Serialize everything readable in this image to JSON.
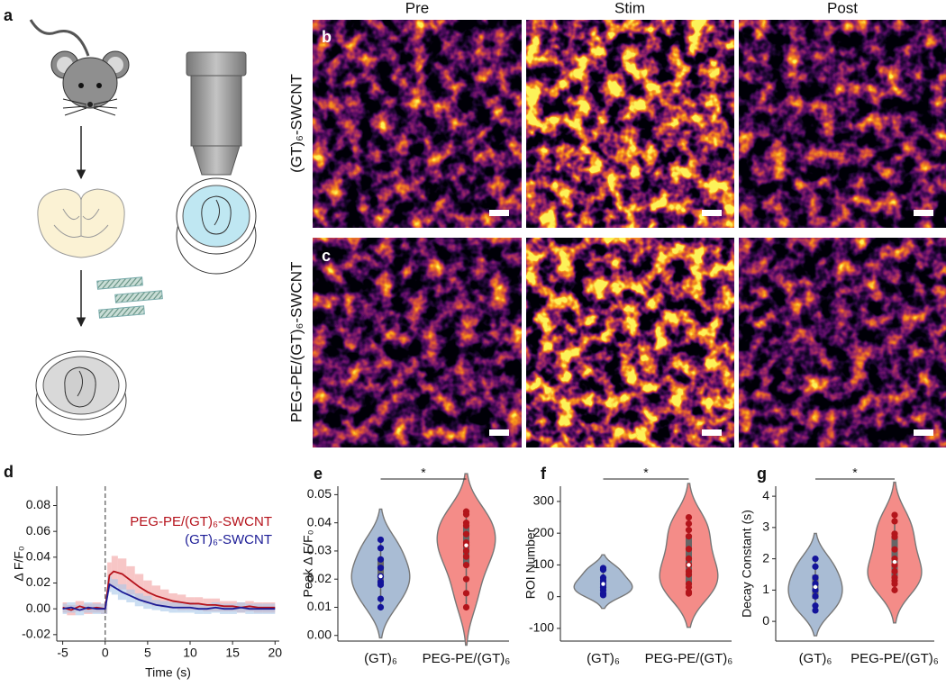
{
  "figure": {
    "panel_labels": [
      "a",
      "b",
      "c",
      "d",
      "e",
      "f",
      "g"
    ],
    "column_headers": [
      "Pre",
      "Stim",
      "Post"
    ],
    "row_labels": [
      "(GT)₆-SWCNT",
      "PEG-PE/(GT)₆-SWCNT"
    ]
  },
  "chart_data": [
    {
      "type": "line",
      "xlabel": "Time (s)",
      "ylabel": "Δ F/F₀",
      "x": [
        -5,
        -4,
        -3,
        -2,
        -1,
        0,
        0.5,
        1,
        2,
        3,
        4,
        5,
        6,
        7,
        8,
        9,
        10,
        11,
        12,
        13,
        14,
        15,
        16,
        17,
        18,
        19,
        20
      ],
      "series": [
        {
          "name": "PEG-PE/(GT)₆-SWCNT",
          "color": "#b5121b",
          "band_color": "#f2a0a0",
          "values": [
            0.001,
            -0.001,
            0.002,
            0,
            0.001,
            0,
            0.026,
            0.029,
            0.027,
            0.022,
            0.017,
            0.013,
            0.01,
            0.008,
            0.006,
            0.005,
            0.004,
            0.004,
            0.003,
            0.003,
            0.002,
            0.002,
            0.001,
            0.002,
            0.001,
            0.001,
            0.001
          ],
          "errors": [
            0.004,
            0.004,
            0.004,
            0.004,
            0.004,
            0.004,
            0.01,
            0.012,
            0.012,
            0.011,
            0.01,
            0.009,
            0.008,
            0.007,
            0.006,
            0.006,
            0.005,
            0.005,
            0.005,
            0.005,
            0.004,
            0.004,
            0.004,
            0.004,
            0.004,
            0.004,
            0.004
          ]
        },
        {
          "name": "(GT)₆-SWCNT",
          "color": "#1c1c96",
          "band_color": "#a9c8ea",
          "values": [
            0,
            0.001,
            -0.001,
            0.001,
            0,
            0,
            0.019,
            0.017,
            0.013,
            0.01,
            0.007,
            0.005,
            0.003,
            0.002,
            0.001,
            0.001,
            0.001,
            0,
            0,
            0.001,
            0,
            0,
            0.001,
            0,
            0,
            0,
            0
          ],
          "errors": [
            0.004,
            0.004,
            0.004,
            0.004,
            0.004,
            0.004,
            0.006,
            0.006,
            0.006,
            0.005,
            0.005,
            0.005,
            0.004,
            0.004,
            0.004,
            0.004,
            0.004,
            0.004,
            0.004,
            0.004,
            0.004,
            0.004,
            0.004,
            0.004,
            0.004,
            0.004,
            0.004
          ]
        }
      ],
      "vline": 0,
      "legend": "upper right",
      "xlim": [
        -5.7,
        20.5
      ],
      "xticks": [
        -5,
        0,
        5,
        10,
        15,
        20
      ],
      "ylim": [
        -0.025,
        0.095
      ],
      "yticks": [
        -0.02,
        {
          "value": 0,
          "label": "0.00"
        },
        0.02,
        0.04,
        0.06,
        0.08
      ]
    },
    {
      "type": "violin",
      "ylabel": "Peak Δ F/F₀",
      "categories": [
        "(GT)₆",
        "PEG-PE/(GT)₆"
      ],
      "values": [
        [
          0.034,
          0.031,
          0.027,
          0.024,
          0.021,
          0.019,
          0.018,
          0.013,
          0.01
        ],
        [
          0.044,
          0.043,
          0.04,
          0.039,
          0.036,
          0.033,
          0.032,
          0.03,
          0.028,
          0.025,
          0.02,
          0.015,
          0.01
        ]
      ],
      "colors": [
        "#a9bcd4",
        "#f48c88"
      ],
      "point_colors": [
        "#13139a",
        "#b3151b"
      ],
      "significance": "*",
      "ylim": [
        -0.002,
        0.053
      ],
      "yticks": [
        {
          "value": 0,
          "label": "0.00"
        },
        0.01,
        0.02,
        0.03,
        0.04,
        0.05
      ]
    },
    {
      "type": "violin",
      "ylabel": "ROI Number",
      "categories": [
        "(GT)₆",
        "PEG-PE/(GT)₆"
      ],
      "values": [
        [
          90,
          85,
          60,
          50,
          40,
          30,
          20,
          10,
          5
        ],
        [
          250,
          230,
          210,
          190,
          150,
          120,
          100,
          80,
          70,
          40,
          30,
          10,
          15
        ]
      ],
      "colors": [
        "#a9bcd4",
        "#f48c88"
      ],
      "point_colors": [
        "#13139a",
        "#b3151b"
      ],
      "significance": "*",
      "ylim": [
        -140,
        348
      ],
      "yticks": [
        -100,
        0,
        100,
        200,
        300
      ]
    },
    {
      "type": "violin",
      "ylabel": "Decay Constant (s)",
      "categories": [
        "(GT)₆",
        "PEG-PE/(GT)₆"
      ],
      "values": [
        [
          2.0,
          1.75,
          1.4,
          1.2,
          1.0,
          0.8,
          0.5,
          0.35
        ],
        [
          3.4,
          3.2,
          2.8,
          2.7,
          2.3,
          2.0,
          1.8,
          1.6,
          1.4,
          1.3,
          1.2,
          1.0
        ]
      ],
      "colors": [
        "#a9bcd4",
        "#f48c88"
      ],
      "point_colors": [
        "#13139a",
        "#b3151b"
      ],
      "significance": "*",
      "ylim": [
        -0.63,
        4.32
      ],
      "yticks": [
        0,
        1,
        2,
        3,
        4
      ]
    }
  ]
}
